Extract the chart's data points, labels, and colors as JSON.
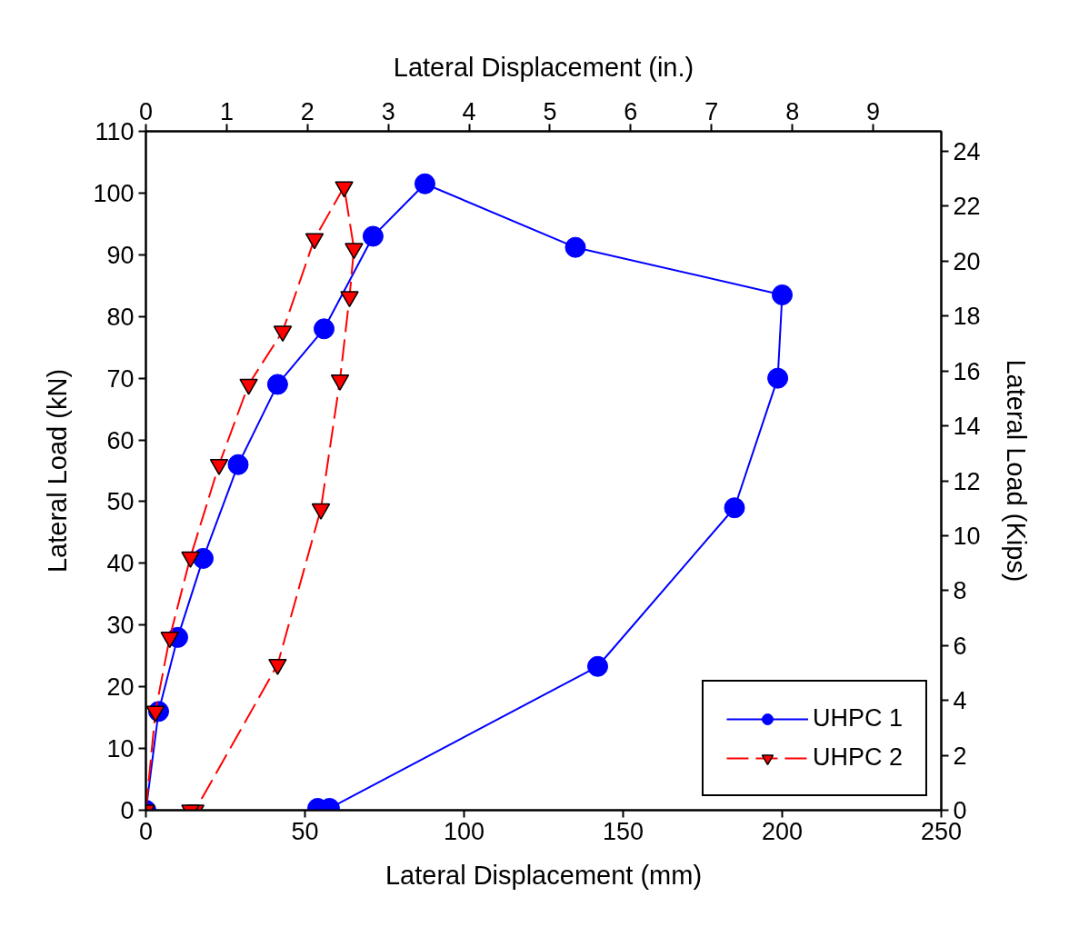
{
  "chart_data": {
    "type": "line",
    "xlabel": "Lateral Displacement (mm)",
    "ylabel": "Lateral Load (kN)",
    "x2label": "Lateral Displacement (in.)",
    "y2label": "Lateral Load (Kips)",
    "xlim": [
      0,
      250
    ],
    "xticks": [
      0,
      50,
      100,
      150,
      200,
      250
    ],
    "ylim": [
      0,
      110
    ],
    "yticks": [
      0,
      10,
      20,
      30,
      40,
      50,
      60,
      70,
      80,
      90,
      100,
      110
    ],
    "x2lim": [
      0,
      9.843
    ],
    "x2ticks": [
      0,
      1,
      2,
      3,
      4,
      5,
      6,
      7,
      8,
      9
    ],
    "y2lim": [
      0,
      24.73
    ],
    "y2ticks": [
      0,
      2,
      4,
      6,
      8,
      10,
      12,
      14,
      16,
      18,
      20,
      22,
      24
    ],
    "grid": false,
    "legend": "bottom right",
    "series": [
      {
        "name": "UHPC 1",
        "color": "#0000ff",
        "marker": "circle",
        "line_style": "solid",
        "x": [
          0,
          4,
          10,
          18,
          29,
          41.4,
          56,
          71.4,
          87.7,
          135,
          200,
          198.6,
          185,
          142,
          57.7,
          54
        ],
        "values": [
          0,
          16,
          28,
          40.8,
          56,
          69,
          78,
          93,
          101.5,
          91.2,
          83.5,
          70,
          49,
          23.3,
          0.3,
          0.3
        ]
      },
      {
        "name": "UHPC 2",
        "color": "#ff0000",
        "marker": "triangle",
        "line_style": "dashed",
        "x": [
          0,
          3,
          7.5,
          14,
          23,
          32.3,
          43,
          53,
          62.3,
          65.4,
          64,
          61,
          55,
          41.4,
          15.5,
          14
        ],
        "values": [
          0,
          16,
          28,
          41,
          56,
          69,
          77.6,
          92.6,
          101,
          91,
          83.2,
          69.7,
          48.8,
          23.6,
          0,
          0
        ]
      }
    ]
  }
}
